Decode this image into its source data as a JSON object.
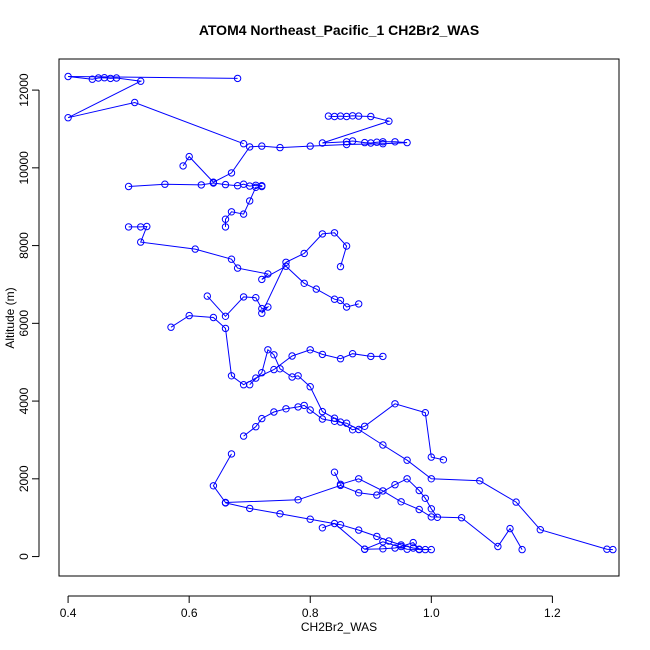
{
  "chart_data": {
    "type": "line",
    "title": "ATOM4 Northeast_Pacific_1 CH2Br2_WAS",
    "xlabel": "CH2Br2_WAS",
    "ylabel": "Altitude (m)",
    "xlim": [
      0.385,
      1.31
    ],
    "ylim": [
      -500,
      12800
    ],
    "xticks": [
      0.4,
      0.6,
      0.8,
      1.0,
      1.2
    ],
    "xtick_labels": [
      "0.4",
      "0.6",
      "0.8",
      "1.0",
      "1.2"
    ],
    "yticks": [
      0,
      2000,
      4000,
      6000,
      8000,
      10000,
      12000
    ],
    "ytick_labels": [
      "0",
      "2000",
      "4000",
      "6000",
      "8000",
      "10000",
      "12000"
    ],
    "grid": false,
    "marker": "open-circle",
    "color": "#0000ff",
    "series": [
      {
        "x": [
          0.68,
          0.4,
          0.44,
          0.45,
          0.46,
          0.47,
          0.48,
          0.52,
          0.4,
          0.51,
          0.69
        ],
        "y": [
          12300,
          12350,
          12280,
          12310,
          12320,
          12300,
          12310,
          12230,
          11290,
          11680,
          10620
        ]
      },
      {
        "x": [
          0.83,
          0.84,
          0.85,
          0.86,
          0.87,
          0.88,
          0.9,
          0.93,
          0.82,
          0.86,
          0.87,
          0.89,
          0.9,
          0.91,
          0.92,
          0.94,
          0.96,
          0.92,
          0.86,
          0.8,
          0.75,
          0.72,
          0.7,
          0.67,
          0.64,
          0.6,
          0.59
        ],
        "y": [
          11330,
          11320,
          11330,
          11320,
          11340,
          11330,
          11320,
          11200,
          10640,
          10670,
          10690,
          10650,
          10640,
          10660,
          10670,
          10670,
          10650,
          10620,
          10600,
          10560,
          10520,
          10560,
          10540,
          9870,
          9630,
          10290,
          10050
        ]
      },
      {
        "x": [
          0.5,
          0.56,
          0.62,
          0.64,
          0.66,
          0.68,
          0.69,
          0.7,
          0.71,
          0.72,
          0.72,
          0.71,
          0.7,
          0.69,
          0.67,
          0.66,
          0.66
        ],
        "y": [
          9520,
          9580,
          9560,
          9610,
          9570,
          9540,
          9580,
          9530,
          9550,
          9540,
          9520,
          9500,
          9150,
          8810,
          8870,
          8680,
          8480
        ]
      },
      {
        "x": [
          0.5,
          0.52,
          0.53,
          0.52,
          0.61,
          0.67,
          0.68,
          0.73,
          0.72,
          0.76,
          0.79,
          0.81,
          0.84,
          0.85,
          0.86,
          0.88
        ],
        "y": [
          8480,
          8480,
          8490,
          8090,
          7910,
          7650,
          7420,
          7270,
          7130,
          7470,
          7030,
          6880,
          6620,
          6590,
          6420,
          6500
        ]
      },
      {
        "x": [
          0.63,
          0.66,
          0.69,
          0.71,
          0.72,
          0.73,
          0.72,
          0.76,
          0.79,
          0.82,
          0.84,
          0.86,
          0.85
        ],
        "y": [
          6700,
          6180,
          6680,
          6660,
          6380,
          6420,
          6260,
          7570,
          7800,
          8300,
          8330,
          7990,
          7460
        ]
      },
      {
        "x": [
          0.57,
          0.6,
          0.64,
          0.66,
          0.67,
          0.69,
          0.71,
          0.74,
          0.77,
          0.8,
          0.82,
          0.85,
          0.87,
          0.9,
          0.92
        ],
        "y": [
          5900,
          6200,
          6150,
          5870,
          4650,
          4420,
          4590,
          4810,
          5160,
          5320,
          5200,
          5090,
          5220,
          5150,
          5150
        ]
      },
      {
        "x": [
          0.7,
          0.72,
          0.73,
          0.74,
          0.75,
          0.77,
          0.78,
          0.8,
          0.82,
          0.84,
          0.85,
          0.87,
          0.89,
          0.94,
          0.99,
          1.0,
          1.02
        ],
        "y": [
          4420,
          4730,
          5320,
          5190,
          4830,
          4620,
          4650,
          4370,
          3730,
          3560,
          3460,
          3260,
          3350,
          3930,
          3700,
          2560,
          2490
        ]
      },
      {
        "x": [
          0.69,
          0.71,
          0.72,
          0.74,
          0.76,
          0.78,
          0.79,
          0.8,
          0.82,
          0.84,
          0.86,
          0.88,
          0.92,
          0.96,
          1.0,
          1.08,
          1.14,
          1.18,
          1.29,
          1.3
        ],
        "y": [
          3100,
          3340,
          3550,
          3720,
          3800,
          3850,
          3890,
          3770,
          3540,
          3480,
          3430,
          3270,
          2870,
          2480,
          2000,
          1950,
          1400,
          690,
          190,
          180
        ]
      },
      {
        "x": [
          0.67,
          0.64,
          0.66,
          0.78,
          0.85,
          0.88,
          0.91,
          0.94,
          0.96,
          0.98,
          0.99,
          1.0,
          1.01
        ],
        "y": [
          2640,
          1820,
          1390,
          1460,
          1830,
          1640,
          1580,
          1850,
          2000,
          1700,
          1500,
          1230,
          1010
        ]
      },
      {
        "x": [
          0.84,
          0.85,
          0.88,
          0.92,
          0.95,
          0.98,
          1.0,
          1.05,
          1.11,
          1.13,
          1.15
        ],
        "y": [
          2170,
          1860,
          2000,
          1690,
          1410,
          1210,
          1020,
          1000,
          260,
          720,
          180
        ]
      },
      {
        "x": [
          0.82,
          0.84,
          0.89,
          0.92,
          0.94,
          0.95,
          0.97,
          0.98,
          1.0,
          0.96,
          0.92,
          0.89
        ],
        "y": [
          740,
          850,
          190,
          200,
          220,
          260,
          360,
          190,
          180,
          190,
          380,
          190
        ]
      },
      {
        "x": [
          0.66,
          0.7,
          0.75,
          0.8,
          0.85,
          0.88,
          0.91,
          0.93,
          0.95,
          0.97,
          0.99,
          0.98
        ],
        "y": [
          1380,
          1240,
          1100,
          960,
          820,
          680,
          520,
          400,
          300,
          220,
          180,
          180
        ]
      }
    ]
  }
}
